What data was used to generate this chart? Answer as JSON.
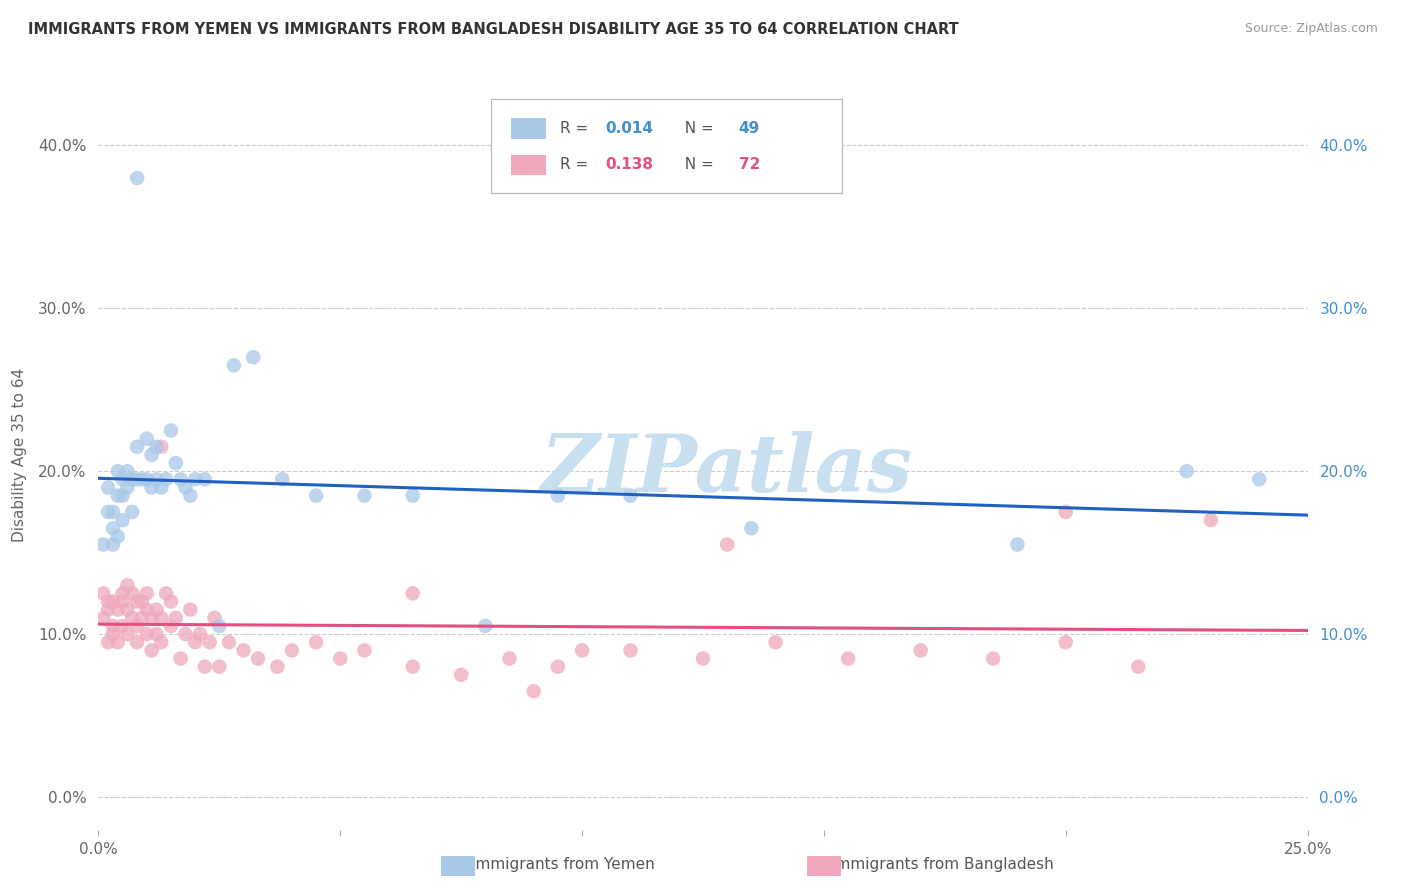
{
  "title": "IMMIGRANTS FROM YEMEN VS IMMIGRANTS FROM BANGLADESH DISABILITY AGE 35 TO 64 CORRELATION CHART",
  "source": "Source: ZipAtlas.com",
  "ylabel": "Disability Age 35 to 64",
  "xlim": [
    0.0,
    0.25
  ],
  "ylim": [
    -0.02,
    0.44
  ],
  "yticks": [
    0.0,
    0.1,
    0.2,
    0.3,
    0.4
  ],
  "xticks": [
    0.0,
    0.05,
    0.1,
    0.15,
    0.2,
    0.25
  ],
  "blue_line_color": "#2060c0",
  "pink_line_color": "#e05080",
  "watermark_text": "ZIPatlas",
  "watermark_color": "#c8dff0",
  "background_color": "#ffffff",
  "grid_color": "#cccccc",
  "yemen_color": "#a8c8e8",
  "bangladesh_color": "#f0a8bc",
  "R_yemen": "0.014",
  "N_yemen": "49",
  "R_bangladesh": "0.138",
  "N_bangladesh": "72",
  "label_yemen": "Immigrants from Yemen",
  "label_bangladesh": "Immigrants from Bangladesh",
  "R_color_yemen": "#4090d0",
  "N_color_yemen": "#4090d0",
  "R_color_bangladesh": "#e05080",
  "N_color_bangladesh": "#e05080",
  "yemen_x": [
    0.001,
    0.002,
    0.002,
    0.003,
    0.003,
    0.003,
    0.004,
    0.004,
    0.004,
    0.005,
    0.005,
    0.005,
    0.006,
    0.006,
    0.007,
    0.007,
    0.008,
    0.008,
    0.009,
    0.01,
    0.01,
    0.011,
    0.011,
    0.012,
    0.012,
    0.013,
    0.014,
    0.015,
    0.016,
    0.017,
    0.018,
    0.019,
    0.02,
    0.022,
    0.025,
    0.028,
    0.032,
    0.038,
    0.045,
    0.055,
    0.065,
    0.08,
    0.095,
    0.11,
    0.135,
    0.19,
    0.225,
    0.24,
    0.008
  ],
  "yemen_y": [
    0.155,
    0.175,
    0.19,
    0.155,
    0.165,
    0.175,
    0.16,
    0.185,
    0.2,
    0.185,
    0.195,
    0.17,
    0.19,
    0.2,
    0.195,
    0.175,
    0.195,
    0.215,
    0.195,
    0.22,
    0.195,
    0.21,
    0.19,
    0.195,
    0.215,
    0.19,
    0.195,
    0.225,
    0.205,
    0.195,
    0.19,
    0.185,
    0.195,
    0.195,
    0.105,
    0.265,
    0.27,
    0.195,
    0.185,
    0.185,
    0.185,
    0.105,
    0.185,
    0.185,
    0.165,
    0.155,
    0.2,
    0.195,
    0.38
  ],
  "bangladesh_x": [
    0.001,
    0.001,
    0.002,
    0.002,
    0.002,
    0.003,
    0.003,
    0.003,
    0.004,
    0.004,
    0.005,
    0.005,
    0.005,
    0.006,
    0.006,
    0.006,
    0.007,
    0.007,
    0.008,
    0.008,
    0.008,
    0.009,
    0.009,
    0.01,
    0.01,
    0.01,
    0.011,
    0.011,
    0.012,
    0.012,
    0.013,
    0.013,
    0.014,
    0.015,
    0.015,
    0.016,
    0.017,
    0.018,
    0.019,
    0.02,
    0.021,
    0.022,
    0.023,
    0.024,
    0.025,
    0.027,
    0.03,
    0.033,
    0.037,
    0.04,
    0.045,
    0.05,
    0.055,
    0.065,
    0.075,
    0.085,
    0.095,
    0.11,
    0.125,
    0.14,
    0.155,
    0.17,
    0.185,
    0.2,
    0.215,
    0.23,
    0.013,
    0.065,
    0.09,
    0.1,
    0.13,
    0.2
  ],
  "bangladesh_y": [
    0.125,
    0.11,
    0.12,
    0.095,
    0.115,
    0.12,
    0.1,
    0.105,
    0.115,
    0.095,
    0.125,
    0.12,
    0.105,
    0.13,
    0.115,
    0.1,
    0.125,
    0.11,
    0.12,
    0.105,
    0.095,
    0.12,
    0.11,
    0.125,
    0.1,
    0.115,
    0.11,
    0.09,
    0.1,
    0.115,
    0.095,
    0.11,
    0.125,
    0.105,
    0.12,
    0.11,
    0.085,
    0.1,
    0.115,
    0.095,
    0.1,
    0.08,
    0.095,
    0.11,
    0.08,
    0.095,
    0.09,
    0.085,
    0.08,
    0.09,
    0.095,
    0.085,
    0.09,
    0.08,
    0.075,
    0.085,
    0.08,
    0.09,
    0.085,
    0.095,
    0.085,
    0.09,
    0.085,
    0.095,
    0.08,
    0.17,
    0.215,
    0.125,
    0.065,
    0.09,
    0.155,
    0.175
  ]
}
